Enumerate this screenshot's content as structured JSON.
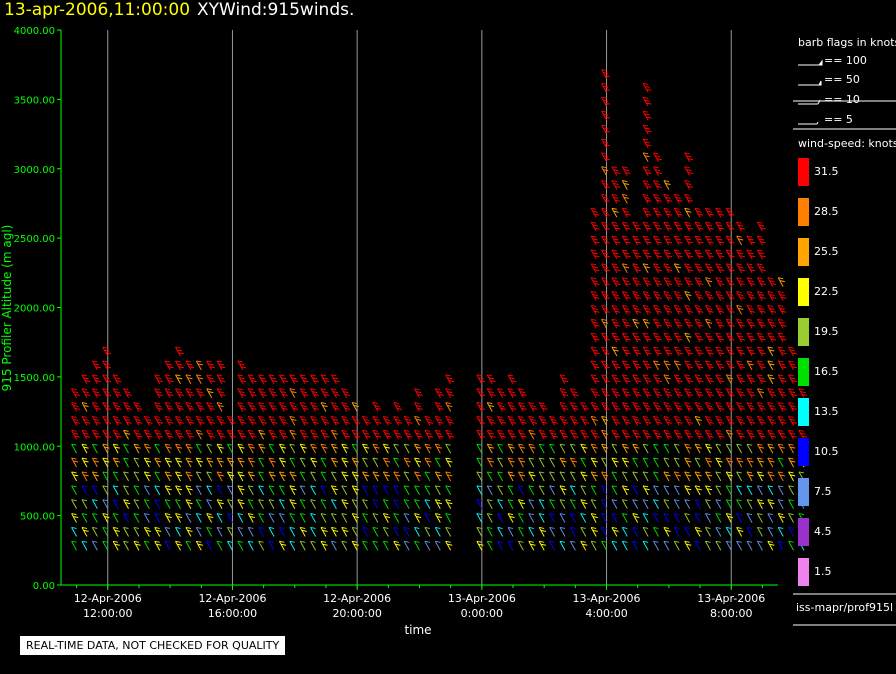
{
  "header": {
    "date_time": "13-apr-2006,11:00:00",
    "product": "XYWind:915winds."
  },
  "colors": {
    "background": "#000000",
    "axis": "#00ff00",
    "title_date": "#ffff00"
  },
  "legend": {
    "barb_title": "barb flags in knots",
    "barb_flags": [
      "== 100",
      "== 50",
      "== 10",
      "== 5"
    ],
    "speed_title": "wind-speed: knots",
    "speed_bins": [
      {
        "label": "31.5",
        "color": "#ff0000"
      },
      {
        "label": "28.5",
        "color": "#ff8000"
      },
      {
        "label": "25.5",
        "color": "#ffa500"
      },
      {
        "label": "22.5",
        "color": "#ffff00"
      },
      {
        "label": "19.5",
        "color": "#9acd32"
      },
      {
        "label": "16.5",
        "color": "#00e000"
      },
      {
        "label": "13.5",
        "color": "#00ffff"
      },
      {
        "label": "10.5",
        "color": "#0000ff"
      },
      {
        "label": "7.5",
        "color": "#6495ed"
      },
      {
        "label": "4.5",
        "color": "#9932cc"
      },
      {
        "label": "1.5",
        "color": "#ee82ee"
      }
    ],
    "source": "iss-mapr/prof915l"
  },
  "quality_note": "REAL-TIME DATA, NOT CHECKED FOR QUALITY",
  "chart_data": {
    "type": "scatter",
    "title": "XYWind:915winds.",
    "xlabel": "time",
    "ylabel": "915 Profiler Altitude (m agl)",
    "ylim": [
      0,
      4000
    ],
    "yticks": [
      "0.00",
      "500.00",
      "1000.00",
      "1500.00",
      "2000.00",
      "2500.00",
      "3000.00",
      "3500.00",
      "4000.00"
    ],
    "xlim_hours": [
      10.5,
      33.5
    ],
    "xticks": [
      {
        "hour": 12,
        "date": "12-Apr-2006",
        "time": "12:00:00"
      },
      {
        "hour": 16,
        "date": "12-Apr-2006",
        "time": "16:00:00"
      },
      {
        "hour": 20,
        "date": "12-Apr-2006",
        "time": "20:00:00"
      },
      {
        "hour": 24,
        "date": "13-Apr-2006",
        "time": "0:00:00"
      },
      {
        "hour": 28,
        "date": "13-Apr-2006",
        "time": "4:00:00"
      },
      {
        "hour": 32,
        "date": "13-Apr-2006",
        "time": "8:00:00"
      }
    ],
    "grid": "vertical",
    "profiles": [
      {
        "t": "12-Apr-2006 11:00",
        "top": 1400
      },
      {
        "t": "12-Apr-2006 11:20",
        "top": 1450
      },
      {
        "t": "12-Apr-2006 11:40",
        "top": 1600
      },
      {
        "t": "12-Apr-2006 12:00",
        "top": 1650
      },
      {
        "t": "12-Apr-2006 12:20",
        "top": 1500
      },
      {
        "t": "12-Apr-2006 12:40",
        "top": 1350
      },
      {
        "t": "12-Apr-2006 13:00",
        "top": 1250
      },
      {
        "t": "12-Apr-2006 13:20",
        "top": 1150
      },
      {
        "t": "12-Apr-2006 13:40",
        "top": 1500
      },
      {
        "t": "12-Apr-2006 14:00",
        "top": 1600
      },
      {
        "t": "12-Apr-2006 14:20",
        "top": 1650
      },
      {
        "t": "12-Apr-2006 14:40",
        "top": 1600
      },
      {
        "t": "12-Apr-2006 15:00",
        "top": 1550
      },
      {
        "t": "12-Apr-2006 15:20",
        "top": 1600
      },
      {
        "t": "12-Apr-2006 15:40",
        "top": 1550
      },
      {
        "t": "12-Apr-2006 16:00",
        "top": 1150
      },
      {
        "t": "12-Apr-2006 16:20",
        "top": 1550
      },
      {
        "t": "12-Apr-2006 16:40",
        "top": 1500
      },
      {
        "t": "12-Apr-2006 17:00",
        "top": 1450
      },
      {
        "t": "12-Apr-2006 17:20",
        "top": 1500
      },
      {
        "t": "12-Apr-2006 17:40",
        "top": 1500
      },
      {
        "t": "12-Apr-2006 18:00",
        "top": 1450
      },
      {
        "t": "12-Apr-2006 18:20",
        "top": 1500
      },
      {
        "t": "12-Apr-2006 18:40",
        "top": 1450
      },
      {
        "t": "12-Apr-2006 19:00",
        "top": 1500
      },
      {
        "t": "12-Apr-2006 19:20",
        "top": 1450
      },
      {
        "t": "12-Apr-2006 19:40",
        "top": 1350
      },
      {
        "t": "12-Apr-2006 20:00",
        "top": 1250
      },
      {
        "t": "12-Apr-2006 20:20",
        "top": 1200
      },
      {
        "t": "12-Apr-2006 20:40",
        "top": 1250
      },
      {
        "t": "12-Apr-2006 21:00",
        "top": 1200
      },
      {
        "t": "12-Apr-2006 21:20",
        "top": 1250
      },
      {
        "t": "12-Apr-2006 21:40",
        "top": 1200
      },
      {
        "t": "12-Apr-2006 22:00",
        "top": 1350
      },
      {
        "t": "12-Apr-2006 22:20",
        "top": 1200
      },
      {
        "t": "12-Apr-2006 22:40",
        "top": 1400
      },
      {
        "t": "12-Apr-2006 23:00",
        "top": 1500
      },
      {
        "t": "13-Apr-2006 00:00",
        "top": 1450
      },
      {
        "t": "13-Apr-2006 00:20",
        "top": 1500
      },
      {
        "t": "13-Apr-2006 00:40",
        "top": 1400
      },
      {
        "t": "13-Apr-2006 01:00",
        "top": 1500
      },
      {
        "t": "13-Apr-2006 01:20",
        "top": 1400
      },
      {
        "t": "13-Apr-2006 01:40",
        "top": 1300
      },
      {
        "t": "13-Apr-2006 02:00",
        "top": 1250
      },
      {
        "t": "13-Apr-2006 02:20",
        "top": 1150
      },
      {
        "t": "13-Apr-2006 02:40",
        "top": 1500
      },
      {
        "t": "13-Apr-2006 03:00",
        "top": 1400
      },
      {
        "t": "13-Apr-2006 03:20",
        "top": 1300
      },
      {
        "t": "13-Apr-2006 03:40",
        "top": 2700
      },
      {
        "t": "13-Apr-2006 04:00",
        "top": 3650
      },
      {
        "t": "13-Apr-2006 04:20",
        "top": 3000
      },
      {
        "t": "13-Apr-2006 04:40",
        "top": 3000
      },
      {
        "t": "13-Apr-2006 05:00",
        "top": 2600
      },
      {
        "t": "13-Apr-2006 05:20",
        "top": 3550
      },
      {
        "t": "13-Apr-2006 05:40",
        "top": 3100
      },
      {
        "t": "13-Apr-2006 06:00",
        "top": 2900
      },
      {
        "t": "13-Apr-2006 06:20",
        "top": 2800
      },
      {
        "t": "13-Apr-2006 06:40",
        "top": 3100
      },
      {
        "t": "13-Apr-2006 07:00",
        "top": 2700
      },
      {
        "t": "13-Apr-2006 07:20",
        "top": 2700
      },
      {
        "t": "13-Apr-2006 07:40",
        "top": 2650
      },
      {
        "t": "13-Apr-2006 08:00",
        "top": 2700
      },
      {
        "t": "13-Apr-2006 08:20",
        "top": 2550
      },
      {
        "t": "13-Apr-2006 08:40",
        "top": 2500
      },
      {
        "t": "13-Apr-2006 09:00",
        "top": 2600
      },
      {
        "t": "13-Apr-2006 09:20",
        "top": 2200
      },
      {
        "t": "13-Apr-2006 09:40",
        "top": 2150
      },
      {
        "t": "13-Apr-2006 10:00",
        "top": 1700
      },
      {
        "t": "13-Apr-2006 10:20",
        "top": 1600
      }
    ]
  }
}
